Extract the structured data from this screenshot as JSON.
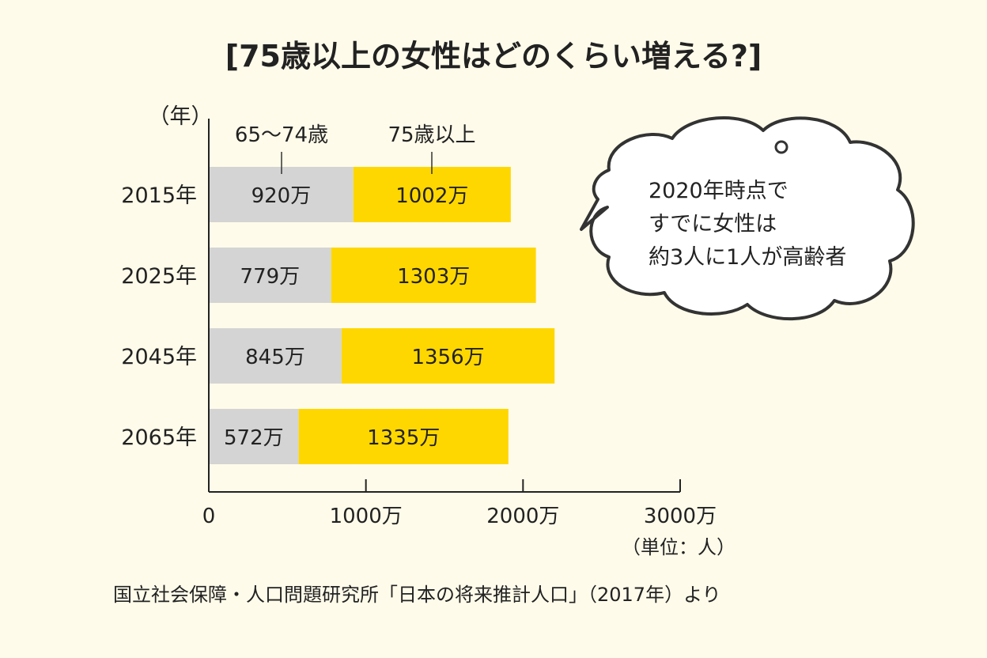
{
  "chart_data": {
    "type": "bar",
    "orientation": "horizontal",
    "stacked": true,
    "title": "[75歳以上の女性はどのくらい増える?]",
    "y_unit_label": "（年）",
    "categories": [
      "2015年",
      "2025年",
      "2045年",
      "2065年"
    ],
    "series": [
      {
        "name": "65〜74歳",
        "values": [
          920,
          779,
          845,
          572
        ],
        "value_labels": [
          "920万",
          "779万",
          "845万",
          "572万"
        ],
        "color": "#D4D4D4"
      },
      {
        "name": "75歳以上",
        "values": [
          1002,
          1303,
          1356,
          1335
        ],
        "value_labels": [
          "1002万",
          "1303万",
          "1356万",
          "1335万"
        ],
        "color": "#FFD700"
      }
    ],
    "xlim": [
      0,
      3000
    ],
    "x_ticks": [
      0,
      1000,
      2000,
      3000
    ],
    "x_tick_labels": [
      "0",
      "1000万",
      "2000万",
      "3000万"
    ],
    "x_unit_label": "（単位：人）",
    "source": "国立社会保障・人口問題研究所「日本の将来推計人口」（2017年）より",
    "callout_lines": [
      "2020年時点で",
      "すでに女性は",
      "約3人に1人が高齢者"
    ]
  }
}
